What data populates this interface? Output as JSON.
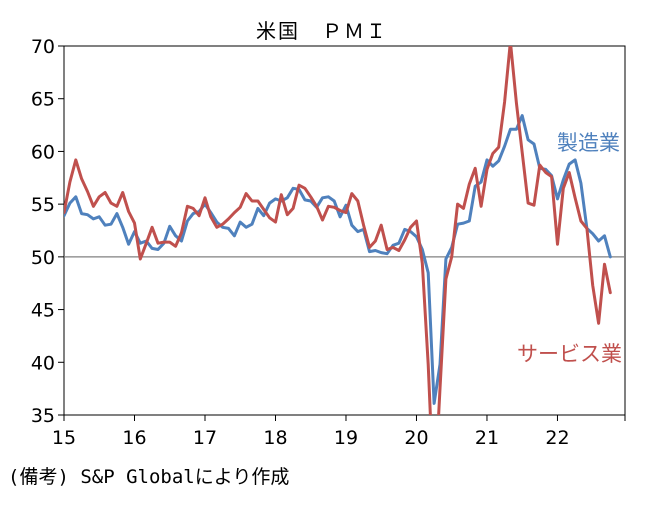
{
  "chart_data": {
    "type": "line",
    "title": "米国　ＰＭＩ",
    "xlabel": "",
    "ylabel": "",
    "ylim": [
      35,
      70
    ],
    "yticks": [
      35,
      40,
      45,
      50,
      55,
      60,
      65,
      70
    ],
    "xlim": [
      2015.0,
      2022.958
    ],
    "xticks": [
      "15",
      "16",
      "17",
      "18",
      "19",
      "20",
      "21",
      "22"
    ],
    "reference_line": 50,
    "grid": false,
    "series": [
      {
        "name": "製造業",
        "color": "#4F81BD",
        "x": [
          2015.0,
          2015.083,
          2015.167,
          2015.25,
          2015.333,
          2015.417,
          2015.5,
          2015.583,
          2015.667,
          2015.75,
          2015.833,
          2015.917,
          2016.0,
          2016.083,
          2016.167,
          2016.25,
          2016.333,
          2016.417,
          2016.5,
          2016.583,
          2016.667,
          2016.75,
          2016.833,
          2016.917,
          2017.0,
          2017.083,
          2017.167,
          2017.25,
          2017.333,
          2017.417,
          2017.5,
          2017.583,
          2017.667,
          2017.75,
          2017.833,
          2017.917,
          2018.0,
          2018.083,
          2018.167,
          2018.25,
          2018.333,
          2018.417,
          2018.5,
          2018.583,
          2018.667,
          2018.75,
          2018.833,
          2018.917,
          2019.0,
          2019.083,
          2019.167,
          2019.25,
          2019.333,
          2019.417,
          2019.5,
          2019.583,
          2019.667,
          2019.75,
          2019.833,
          2019.917,
          2020.0,
          2020.083,
          2020.167,
          2020.25,
          2020.333,
          2020.417,
          2020.5,
          2020.583,
          2020.667,
          2020.75,
          2020.833,
          2020.917,
          2021.0,
          2021.083,
          2021.167,
          2021.25,
          2021.333,
          2021.417,
          2021.5,
          2021.583,
          2021.667,
          2021.75,
          2021.833,
          2021.917,
          2022.0,
          2022.083,
          2022.167,
          2022.25,
          2022.333,
          2022.417,
          2022.5,
          2022.583,
          2022.667,
          2022.75
        ],
        "values": [
          53.9,
          55.1,
          55.7,
          54.1,
          54.0,
          53.6,
          53.8,
          53.0,
          53.1,
          54.1,
          52.8,
          51.2,
          52.4,
          51.3,
          51.5,
          50.8,
          50.7,
          51.3,
          52.9,
          52.0,
          51.5,
          53.4,
          54.1,
          54.3,
          55.0,
          54.2,
          53.3,
          52.8,
          52.7,
          52.0,
          53.3,
          52.8,
          53.1,
          54.6,
          53.9,
          55.1,
          55.5,
          55.3,
          55.6,
          56.5,
          56.4,
          55.4,
          55.3,
          54.7,
          55.6,
          55.7,
          55.3,
          53.8,
          54.9,
          53.0,
          52.4,
          52.6,
          50.5,
          50.6,
          50.4,
          50.3,
          51.1,
          51.3,
          52.6,
          52.4,
          51.9,
          50.7,
          48.5,
          36.1,
          39.8,
          49.8,
          50.9,
          53.1,
          53.2,
          53.4,
          56.7,
          57.1,
          59.2,
          58.6,
          59.1,
          60.5,
          62.1,
          62.1,
          63.4,
          61.1,
          60.7,
          58.4,
          58.3,
          57.7,
          55.5,
          57.3,
          58.8,
          59.2,
          57.0,
          52.7,
          52.2,
          51.5,
          52.0,
          50.0
        ]
      },
      {
        "name": "サービス業",
        "color": "#C0504D",
        "x": [
          2015.0,
          2015.083,
          2015.167,
          2015.25,
          2015.333,
          2015.417,
          2015.5,
          2015.583,
          2015.667,
          2015.75,
          2015.833,
          2015.917,
          2016.0,
          2016.083,
          2016.167,
          2016.25,
          2016.333,
          2016.417,
          2016.5,
          2016.583,
          2016.667,
          2016.75,
          2016.833,
          2016.917,
          2017.0,
          2017.083,
          2017.167,
          2017.25,
          2017.333,
          2017.417,
          2017.5,
          2017.583,
          2017.667,
          2017.75,
          2017.833,
          2017.917,
          2018.0,
          2018.083,
          2018.167,
          2018.25,
          2018.333,
          2018.417,
          2018.5,
          2018.583,
          2018.667,
          2018.75,
          2018.833,
          2018.917,
          2019.0,
          2019.083,
          2019.167,
          2019.25,
          2019.333,
          2019.417,
          2019.5,
          2019.583,
          2019.667,
          2019.75,
          2019.833,
          2019.917,
          2020.0,
          2020.083,
          2020.167,
          2020.25,
          2020.333,
          2020.417,
          2020.5,
          2020.583,
          2020.667,
          2020.75,
          2020.833,
          2020.917,
          2021.0,
          2021.083,
          2021.167,
          2021.25,
          2021.333,
          2021.417,
          2021.5,
          2021.583,
          2021.667,
          2021.75,
          2021.833,
          2021.917,
          2022.0,
          2022.083,
          2022.167,
          2022.25,
          2022.333,
          2022.417,
          2022.5,
          2022.583,
          2022.667,
          2022.75
        ],
        "values": [
          54.2,
          57.1,
          59.2,
          57.4,
          56.2,
          54.8,
          55.7,
          56.1,
          55.1,
          54.8,
          56.1,
          54.3,
          53.2,
          49.8,
          51.3,
          52.8,
          51.3,
          51.4,
          51.4,
          51.0,
          52.3,
          54.8,
          54.6,
          53.9,
          55.6,
          53.8,
          52.8,
          53.1,
          53.6,
          54.2,
          54.7,
          56.0,
          55.3,
          55.3,
          54.5,
          53.7,
          53.3,
          55.9,
          54.0,
          54.6,
          56.8,
          56.5,
          55.7,
          54.8,
          53.5,
          54.8,
          54.7,
          54.4,
          54.2,
          56.0,
          55.3,
          53.0,
          50.9,
          51.5,
          53.0,
          50.7,
          50.9,
          50.6,
          51.6,
          52.8,
          53.4,
          49.4,
          39.8,
          26.7,
          37.5,
          47.9,
          50.0,
          55.0,
          54.6,
          56.9,
          58.4,
          54.8,
          58.3,
          59.8,
          60.4,
          64.7,
          70.4,
          64.6,
          59.9,
          55.1,
          54.9,
          58.7,
          58.0,
          57.6,
          51.2,
          56.5,
          58.0,
          55.6,
          53.4,
          52.7,
          47.3,
          43.7,
          49.3,
          46.6
        ]
      }
    ],
    "series_label_positions": [
      "top-right",
      "lower-right"
    ]
  },
  "note": "(備考) S&P Globalにより作成"
}
